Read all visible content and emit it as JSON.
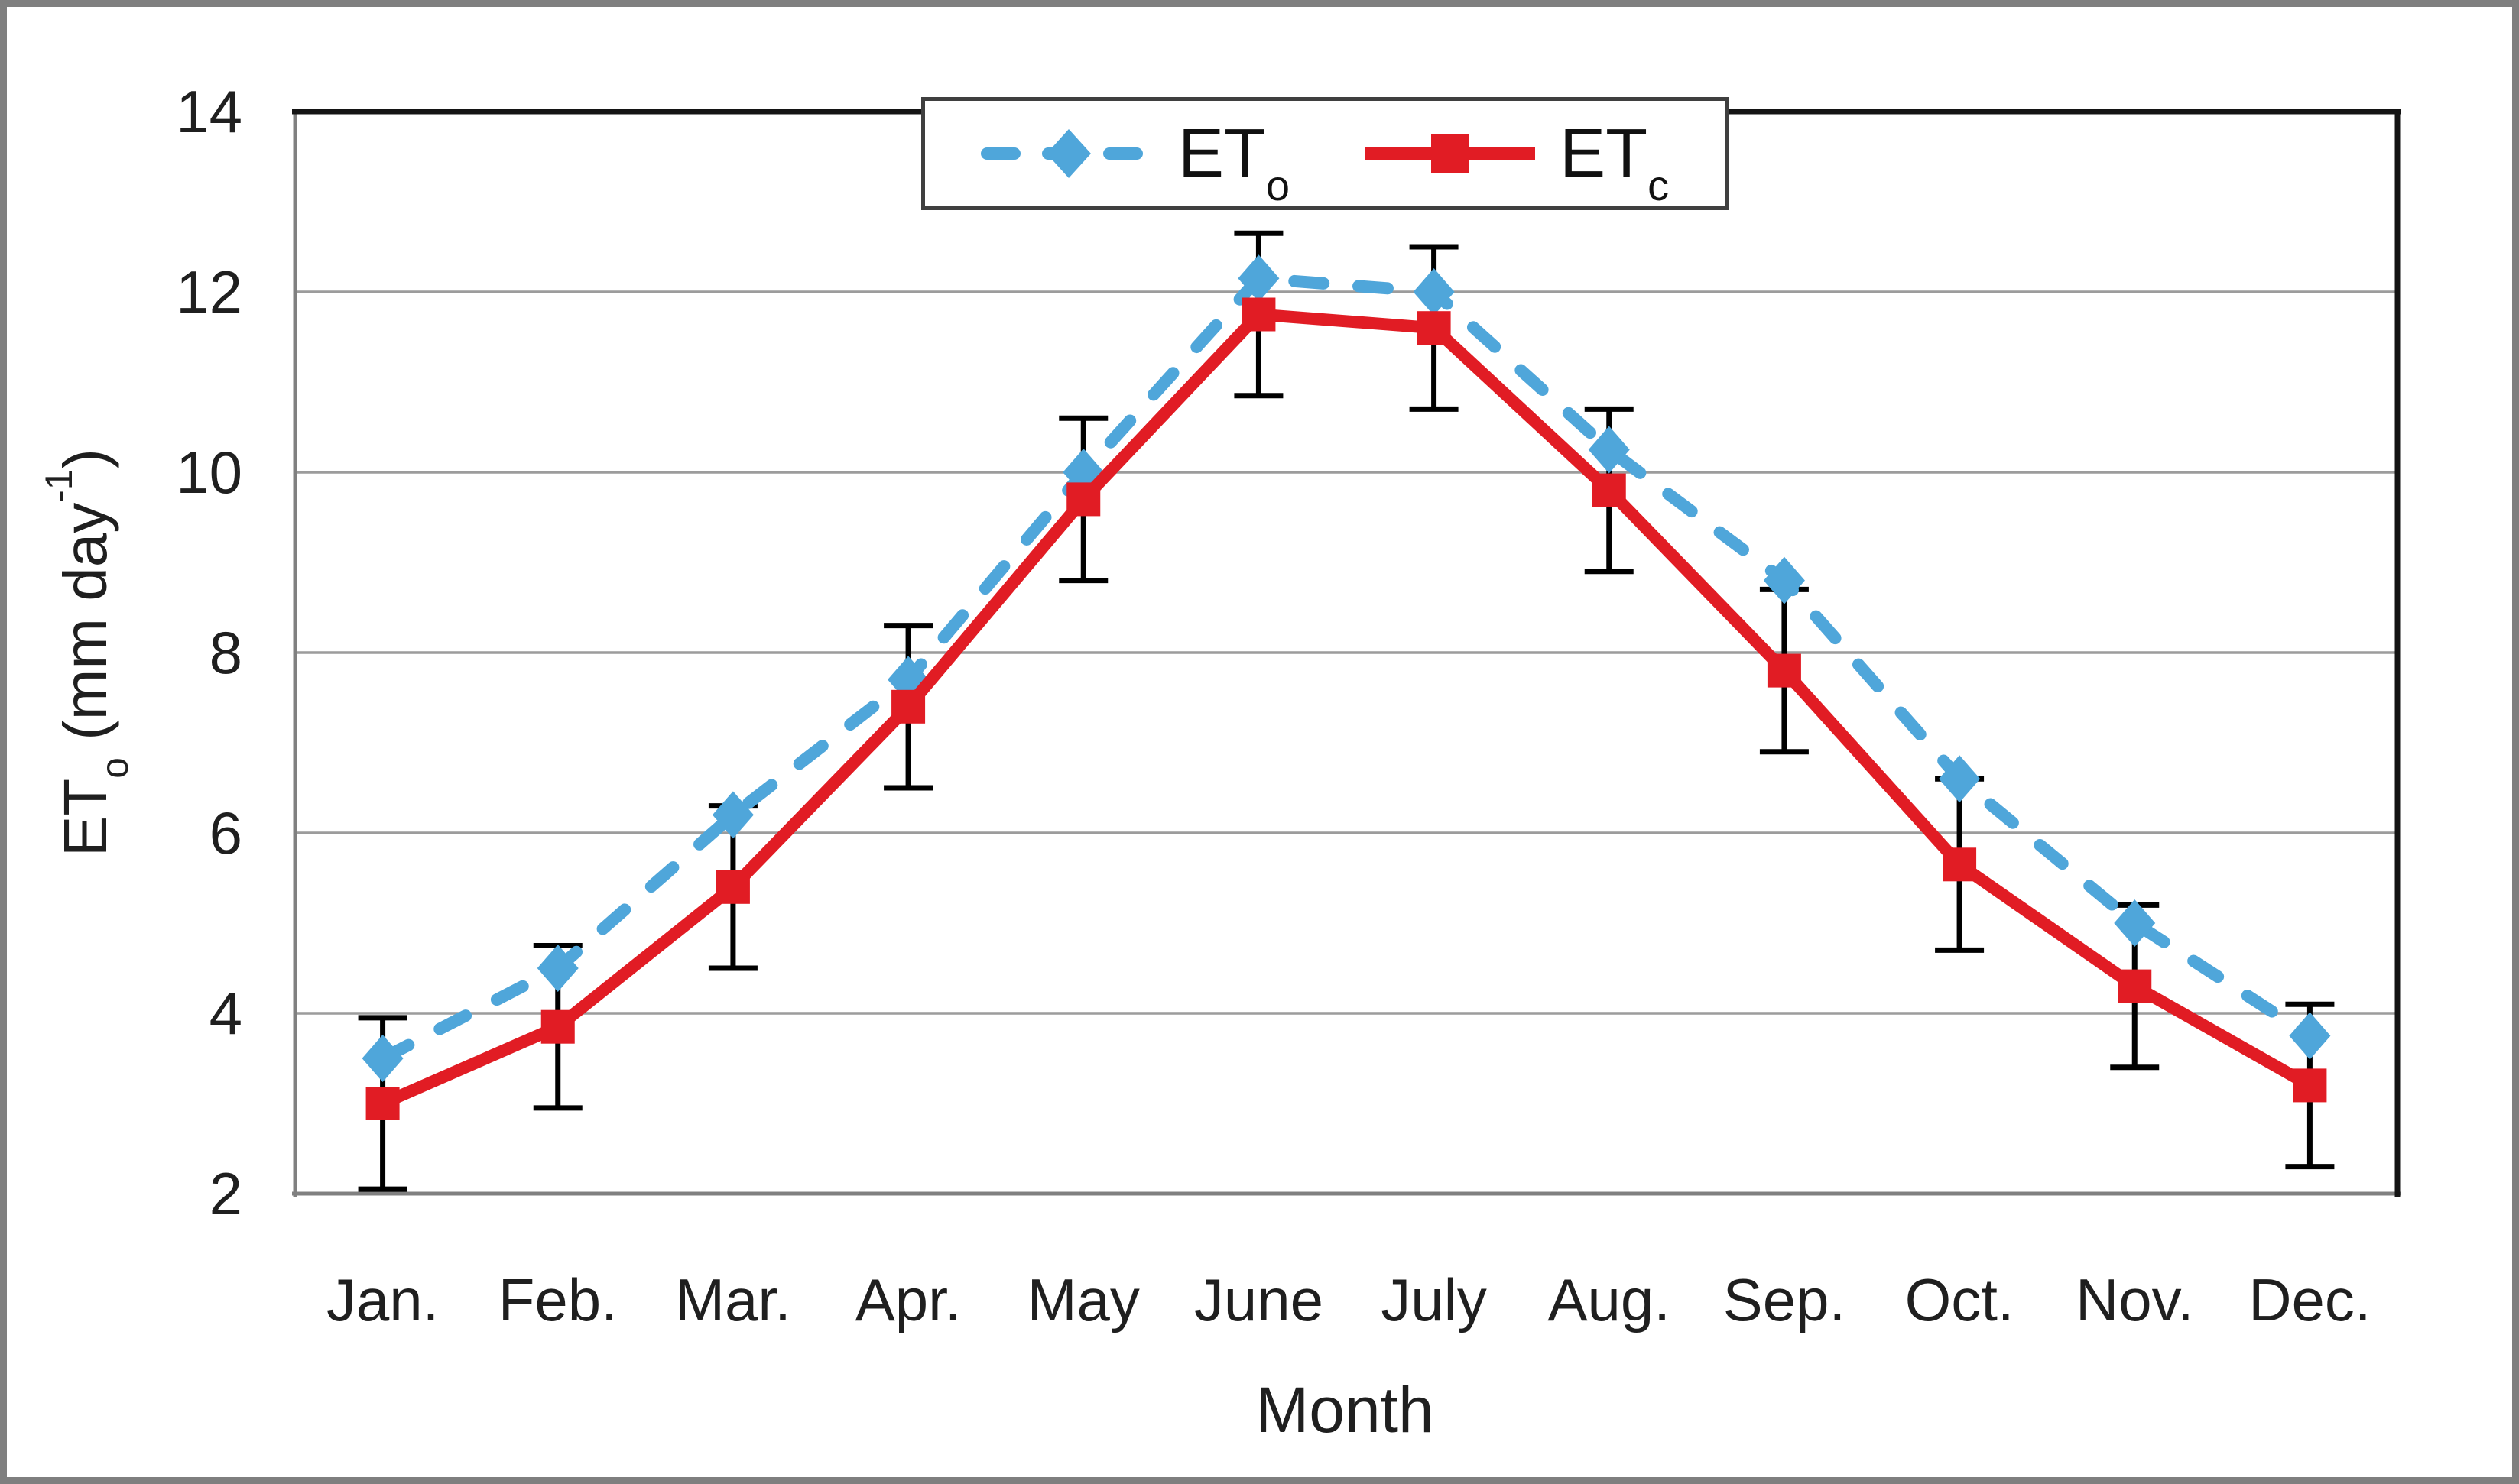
{
  "chart_data": {
    "type": "line",
    "title": "",
    "xlabel": "Month",
    "ylabel": "ETo (mm day-1)",
    "ylabel_parts": {
      "prefix": "ET",
      "sub": "o",
      "mid": " (mm day",
      "sup": "-1",
      "suffix": ")"
    },
    "categories": [
      "Jan.",
      "Feb.",
      "Mar.",
      "Apr.",
      "May",
      "June",
      "July",
      "Aug.",
      "Sep.",
      "Oct.",
      "Nov.",
      "Dec."
    ],
    "ylim": [
      2,
      14
    ],
    "yticks": [
      2,
      4,
      6,
      8,
      10,
      12,
      14
    ],
    "grid": "horizontal",
    "legend_position": "top-center",
    "colors": {
      "eto_blue": "#4FA6DA",
      "etc_red": "#E11C24",
      "error_bar": "#000000",
      "gridline": "#9C9C9C",
      "axis_dark": "#141414",
      "axis_gray": "#808080",
      "figure_border": "#7F7F7F",
      "text": "#1F1F1F"
    },
    "series": [
      {
        "name": "ETo",
        "label_main": "ET",
        "label_sub": "o",
        "color": "#4FA6DA",
        "line_style": "dashed",
        "marker": "diamond",
        "values": [
          3.5,
          4.5,
          6.2,
          7.7,
          10.0,
          12.15,
          12.0,
          10.25,
          8.8,
          6.6,
          5.0,
          3.75
        ]
      },
      {
        "name": "ETc",
        "label_main": "ET",
        "label_sub": "c",
        "color": "#E11C24",
        "line_style": "solid",
        "marker": "square",
        "values": [
          3.0,
          3.85,
          5.4,
          7.4,
          9.7,
          11.75,
          11.6,
          9.8,
          7.8,
          5.65,
          4.3,
          3.2
        ],
        "error_bars": {
          "color": "#000000",
          "plus": [
            0.95,
            0.9,
            0.9,
            0.9,
            0.9,
            0.9,
            0.9,
            0.9,
            0.9,
            0.95,
            0.9,
            0.9
          ],
          "minus": [
            0.95,
            0.9,
            0.9,
            0.9,
            0.9,
            0.9,
            0.9,
            0.9,
            0.9,
            0.95,
            0.9,
            0.9
          ]
        }
      }
    ]
  }
}
